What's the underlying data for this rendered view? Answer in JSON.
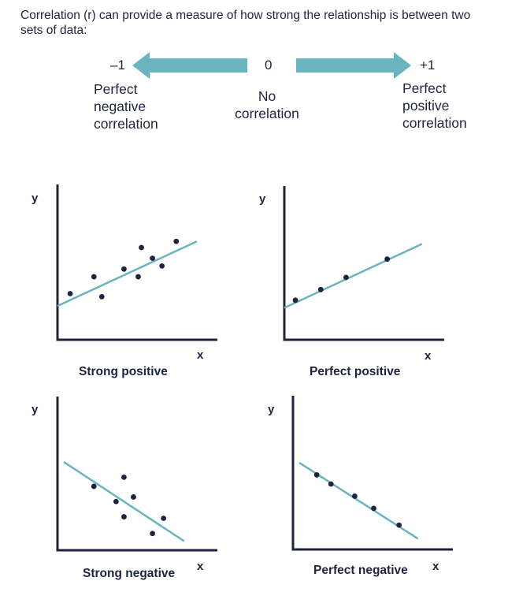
{
  "intro_text": "Correlation (r) can provide a measure of how strong the relationship is between two sets of data:",
  "scale": {
    "left_value": "–1",
    "center_value": "0",
    "right_value": "+1",
    "left_desc": [
      "Perfect",
      "negative",
      "correlation"
    ],
    "center_desc": [
      "No",
      "correlation"
    ],
    "right_desc": [
      "Perfect",
      "positive",
      "correlation"
    ],
    "arrow_color": "#6ab4bf"
  },
  "plots": [
    {
      "caption": "Strong positive",
      "x_label": "x",
      "y_label": "y",
      "points": [
        [
          0.08,
          0.3
        ],
        [
          0.23,
          0.41
        ],
        [
          0.28,
          0.28
        ],
        [
          0.42,
          0.46
        ],
        [
          0.51,
          0.41
        ],
        [
          0.53,
          0.6
        ],
        [
          0.6,
          0.53
        ],
        [
          0.66,
          0.48
        ],
        [
          0.75,
          0.64
        ]
      ],
      "line": [
        [
          0.0,
          0.22
        ],
        [
          0.88,
          0.64
        ]
      ]
    },
    {
      "caption": "Perfect positive",
      "x_label": "x",
      "y_label": "y",
      "points": [
        [
          0.07,
          0.26
        ],
        [
          0.23,
          0.33
        ],
        [
          0.39,
          0.41
        ],
        [
          0.65,
          0.53
        ]
      ],
      "line": [
        [
          0.0,
          0.21
        ],
        [
          0.87,
          0.63
        ]
      ]
    },
    {
      "caption": "Strong negative",
      "x_label": "x",
      "y_label": "y",
      "points": [
        [
          0.23,
          0.42
        ],
        [
          0.37,
          0.32
        ],
        [
          0.42,
          0.48
        ],
        [
          0.48,
          0.35
        ],
        [
          0.42,
          0.22
        ],
        [
          0.67,
          0.21
        ],
        [
          0.6,
          0.11
        ]
      ],
      "line": [
        [
          0.04,
          0.58
        ],
        [
          0.8,
          0.06
        ]
      ]
    },
    {
      "caption": "Perfect negative",
      "x_label": "x",
      "y_label": "y",
      "points": [
        [
          0.15,
          0.49
        ],
        [
          0.24,
          0.43
        ],
        [
          0.39,
          0.35
        ],
        [
          0.51,
          0.27
        ],
        [
          0.67,
          0.16
        ]
      ],
      "line": [
        [
          0.04,
          0.57
        ],
        [
          0.79,
          0.07
        ]
      ]
    }
  ],
  "colors": {
    "text": "#1f2340",
    "axis": "#1f2340",
    "fit_line": "#6ab4bf",
    "point": "#1f2340"
  }
}
